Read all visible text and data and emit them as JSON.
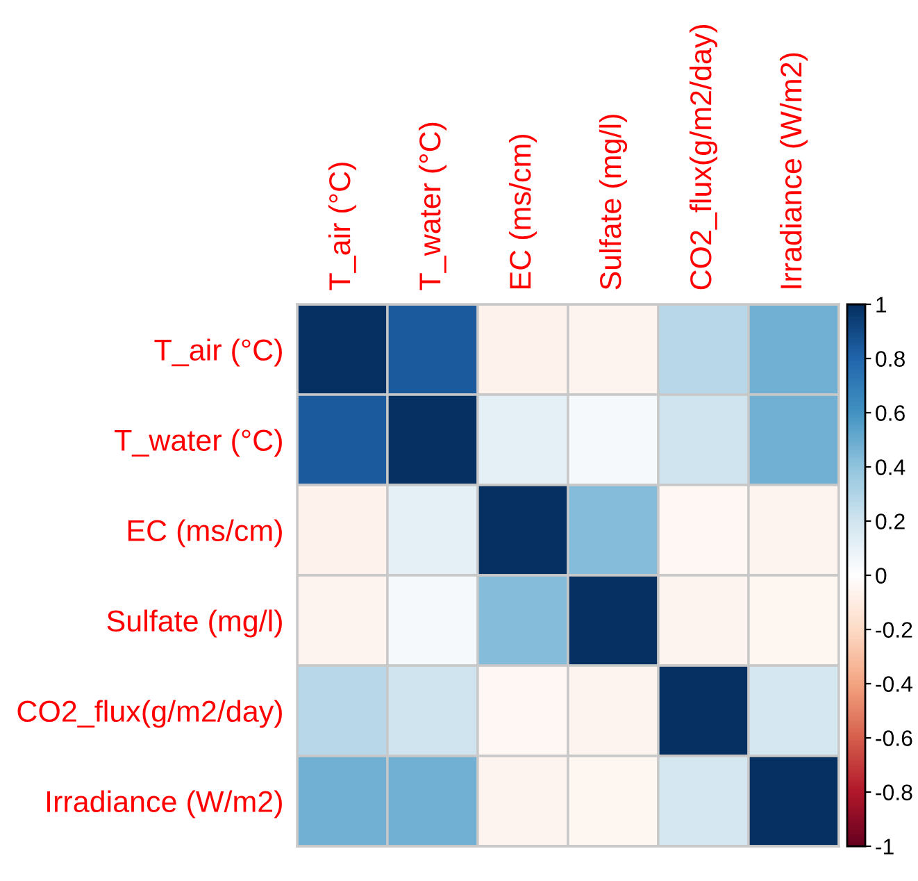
{
  "chart_data": {
    "type": "heatmap",
    "categories": [
      "T_air (°C)",
      "T_water (°C)",
      "EC (ms/cm)",
      "Sulfate (mg/l)",
      "CO2_flux(g/m2/day)",
      "Irradiance (W/m2)"
    ],
    "y_categories": [
      "T_air (°C)",
      "T_water (°C)",
      "EC (ms/cm)",
      "Sulfate (mg/l)",
      "CO2_flux(g/m2/day)",
      "Irradiance (W/m2)"
    ],
    "cells": [
      [
        1,
        0.84,
        -0.07,
        -0.06,
        0.28,
        0.48
      ],
      [
        0.84,
        1,
        0.11,
        0.04,
        0.21,
        0.48
      ],
      [
        -0.07,
        0.11,
        1,
        0.43,
        -0.04,
        -0.06
      ],
      [
        -0.06,
        0.04,
        0.43,
        1,
        -0.06,
        -0.05
      ],
      [
        0.28,
        0.21,
        -0.04,
        -0.06,
        1,
        0.18
      ],
      [
        0.48,
        0.48,
        -0.06,
        -0.05,
        0.18,
        1
      ]
    ],
    "clim": [
      -1,
      1
    ],
    "cticks": [
      1,
      0.8,
      0.6,
      0.4,
      0.2,
      0,
      -0.2,
      -0.4,
      -0.6,
      -0.8,
      -1
    ]
  }
}
